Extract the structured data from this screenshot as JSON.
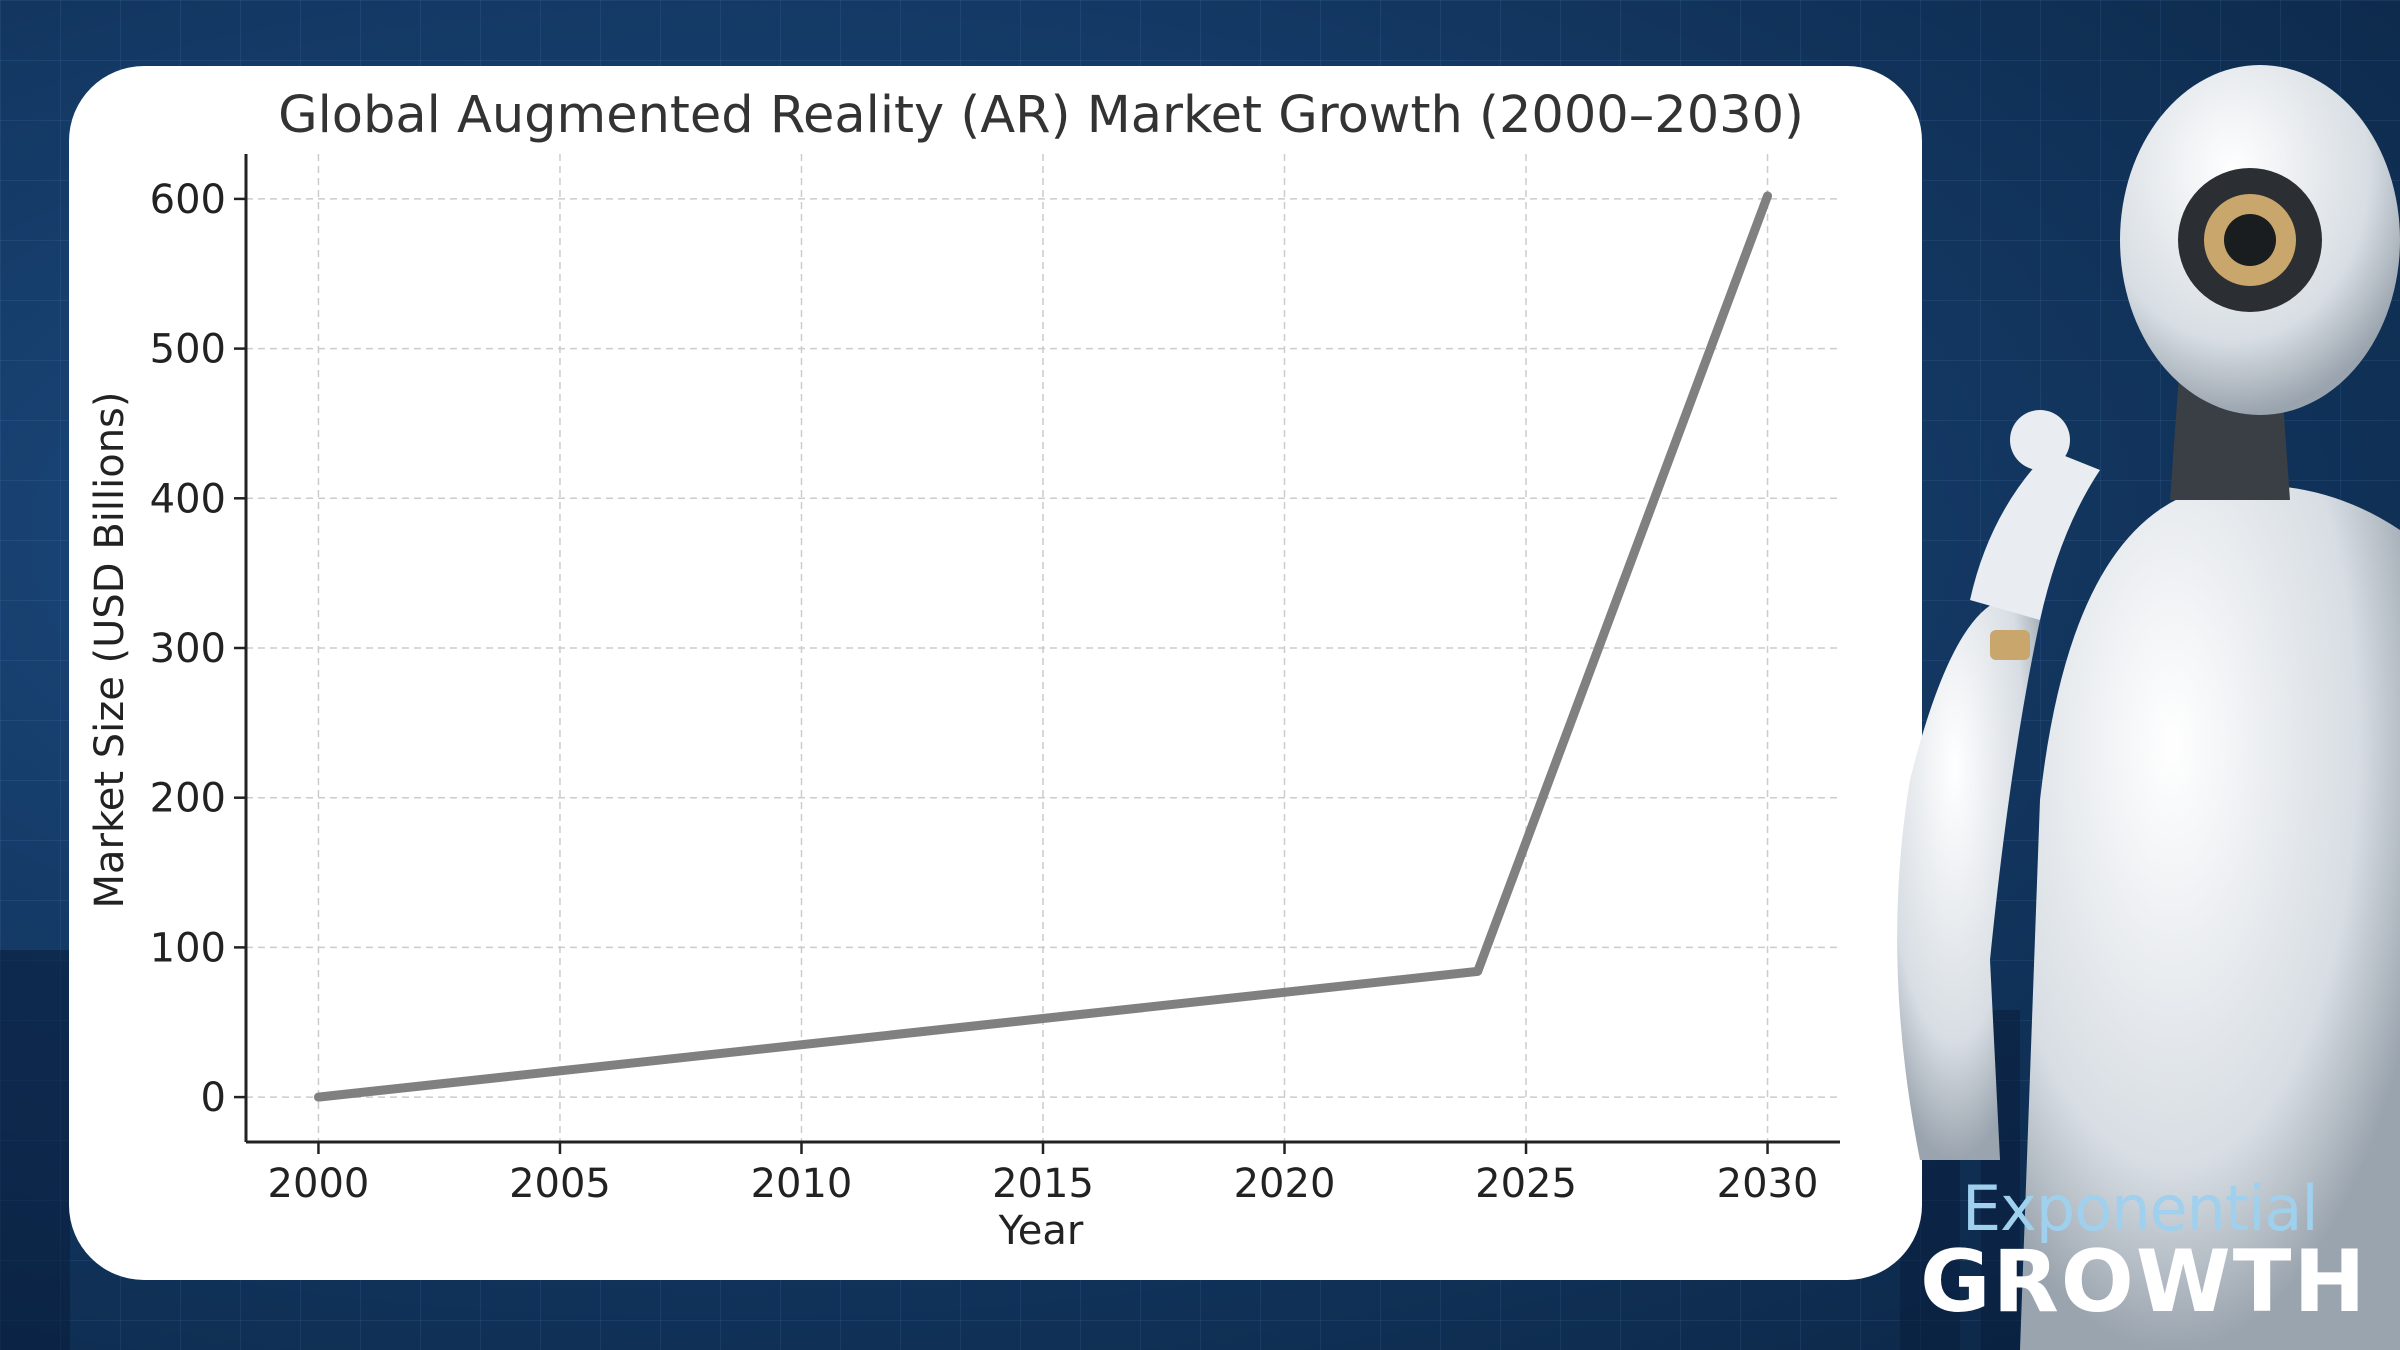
{
  "brand": {
    "line1": "Exponential",
    "line2": "GROWTH"
  },
  "colors": {
    "line": "#808080",
    "grid": "#cccccc",
    "text": "#222222",
    "brand_light": "#9fd0ee"
  },
  "chart_data": {
    "type": "line",
    "title": "Global Augmented Reality (AR) Market Growth (2000–2030)",
    "xlabel": "Year",
    "ylabel": "Market Size (USD Billions)",
    "x_ticks": [
      2000,
      2005,
      2010,
      2015,
      2020,
      2025,
      2030
    ],
    "y_ticks": [
      0,
      100,
      200,
      300,
      400,
      500,
      600
    ],
    "xlim": [
      1998.5,
      2031.5
    ],
    "ylim": [
      -30,
      630
    ],
    "grid": true,
    "series": [
      {
        "x": [
          2000,
          2024,
          2030
        ],
        "y": [
          0,
          84,
          602
        ]
      }
    ]
  }
}
